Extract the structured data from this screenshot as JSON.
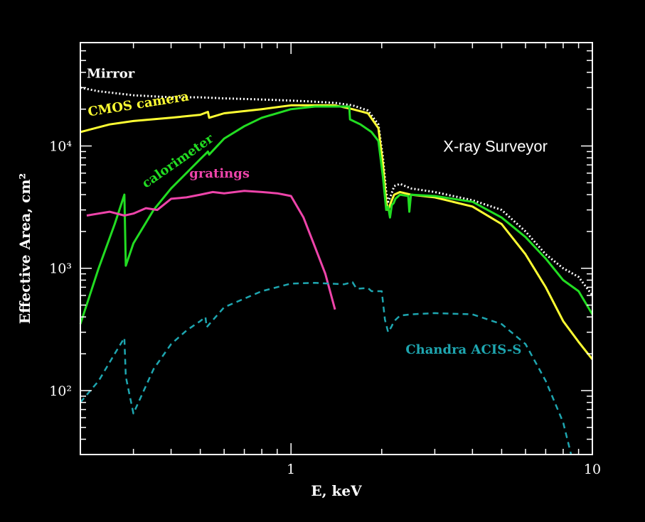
{
  "chart_data": {
    "type": "line",
    "title": "",
    "xlabel": "E, keV",
    "ylabel": "Effective Area, cm²",
    "x_scale": "log",
    "y_scale": "log",
    "xlim": [
      0.2,
      10
    ],
    "ylim": [
      30,
      70000
    ],
    "grid": false,
    "x_ticks": [
      {
        "value": 1,
        "label": "1"
      },
      {
        "value": 10,
        "label": "10"
      }
    ],
    "y_ticks": [
      {
        "value": 100,
        "label": "10²"
      },
      {
        "value": 1000,
        "label": "10³"
      },
      {
        "value": 10000,
        "label": "10⁴"
      }
    ],
    "annotations": [
      {
        "text": "X-ray Surveyor",
        "x": 3.2,
        "y": 10000
      }
    ],
    "series": [
      {
        "name": "Mirror",
        "color": "#ffffff",
        "style": "dotted",
        "label_at": {
          "x": 0.21,
          "y": 36000,
          "rotate": 0
        },
        "x": [
          0.2,
          0.23,
          0.3,
          0.4,
          0.5,
          0.6,
          0.8,
          1.0,
          1.2,
          1.4,
          1.6,
          1.8,
          1.95,
          2.02,
          2.07,
          2.1,
          2.15,
          2.2,
          2.3,
          2.5,
          3.0,
          4.0,
          5.0,
          6.0,
          7.0,
          8.0,
          9.0,
          10.0
        ],
        "y": [
          30000,
          28000,
          26000,
          25000,
          25000,
          24500,
          24000,
          23500,
          23000,
          22500,
          21500,
          19500,
          15000,
          8000,
          4200,
          3500,
          4000,
          4700,
          4900,
          4500,
          4200,
          3600,
          3000,
          2000,
          1300,
          1000,
          850,
          600
        ]
      },
      {
        "name": "CMOS camera",
        "color": "#ffff33",
        "style": "solid",
        "label_at": {
          "x": 0.213,
          "y": 17500,
          "rotate": -9
        },
        "x": [
          0.2,
          0.25,
          0.3,
          0.4,
          0.5,
          0.53,
          0.535,
          0.6,
          0.8,
          1.0,
          1.2,
          1.4,
          1.6,
          1.8,
          1.95,
          2.02,
          2.07,
          2.1,
          2.15,
          2.2,
          2.3,
          2.5,
          3.0,
          4.0,
          5.0,
          6.0,
          7.0,
          8.0,
          9.0,
          10.0
        ],
        "y": [
          13000,
          15000,
          16000,
          17000,
          18000,
          19000,
          17000,
          18500,
          20000,
          21500,
          21500,
          21500,
          20000,
          18500,
          14000,
          7000,
          3500,
          3000,
          3500,
          4000,
          4200,
          4000,
          3800,
          3200,
          2300,
          1300,
          700,
          370,
          250,
          180
        ]
      },
      {
        "name": "calorimeter",
        "color": "#22dd22",
        "style": "solid",
        "label_at": {
          "x": 0.33,
          "y": 4500,
          "rotate": -35
        },
        "x": [
          0.2,
          0.23,
          0.26,
          0.28,
          0.283,
          0.3,
          0.35,
          0.4,
          0.5,
          0.53,
          0.535,
          0.6,
          0.7,
          0.8,
          1.0,
          1.2,
          1.4,
          1.56,
          1.57,
          1.7,
          1.85,
          1.95,
          2.02,
          2.07,
          2.1,
          2.13,
          2.16,
          2.19,
          2.22,
          2.3,
          2.45,
          2.47,
          2.5,
          3.0,
          4.0,
          5.0,
          6.0,
          7.0,
          8.0,
          9.0,
          10.0
        ],
        "y": [
          350,
          1000,
          2300,
          4000,
          1050,
          1600,
          3000,
          4500,
          7800,
          9000,
          8500,
          11500,
          14500,
          17000,
          20000,
          21000,
          21000,
          21000,
          16500,
          15000,
          13000,
          11000,
          5500,
          3000,
          3200,
          2600,
          3300,
          3400,
          3700,
          4000,
          3900,
          2900,
          4000,
          3900,
          3500,
          2600,
          1800,
          1200,
          800,
          650,
          420
        ]
      },
      {
        "name": "gratings",
        "color": "#ee44aa",
        "style": "solid",
        "label_at": {
          "x": 0.46,
          "y": 5500,
          "rotate": 0
        },
        "x": [
          0.21,
          0.25,
          0.28,
          0.3,
          0.33,
          0.36,
          0.4,
          0.45,
          0.5,
          0.55,
          0.6,
          0.7,
          0.8,
          0.9,
          0.95,
          1.0,
          1.1,
          1.2,
          1.3,
          1.4
        ],
        "y": [
          2700,
          2900,
          2700,
          2800,
          3100,
          3000,
          3700,
          3800,
          4000,
          4200,
          4100,
          4300,
          4200,
          4100,
          4000,
          3900,
          2600,
          1500,
          900,
          460
        ]
      },
      {
        "name": "Chandra ACIS-S",
        "color": "#1ea6b0",
        "style": "dashed",
        "label_at": {
          "x": 2.4,
          "y": 200,
          "rotate": 0
        },
        "x": [
          0.2,
          0.23,
          0.26,
          0.28,
          0.283,
          0.3,
          0.35,
          0.4,
          0.45,
          0.5,
          0.52,
          0.525,
          0.6,
          0.8,
          1.0,
          1.2,
          1.5,
          1.6,
          1.65,
          1.8,
          1.85,
          2.0,
          2.05,
          2.1,
          2.15,
          2.2,
          2.3,
          2.5,
          3.0,
          4.0,
          5.0,
          6.0,
          7.0,
          8.0,
          8.5
        ],
        "y": [
          80,
          120,
          200,
          270,
          130,
          65,
          150,
          240,
          310,
          370,
          400,
          330,
          480,
          650,
          750,
          760,
          740,
          770,
          680,
          690,
          650,
          650,
          380,
          300,
          330,
          370,
          410,
          420,
          430,
          420,
          350,
          240,
          120,
          55,
          30
        ]
      }
    ]
  }
}
